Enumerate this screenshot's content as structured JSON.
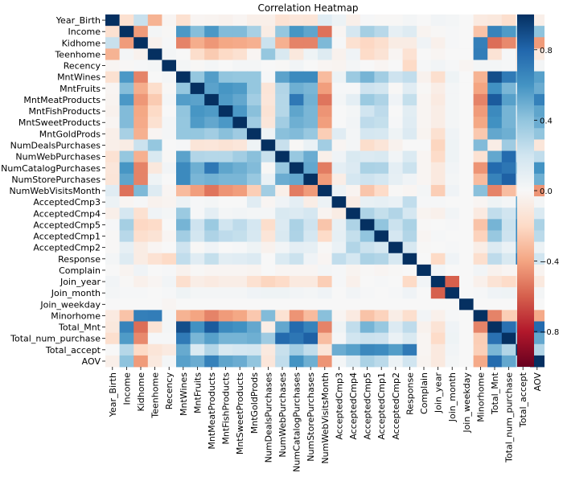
{
  "chart_data": {
    "type": "heatmap",
    "title": "Correlation Heatmap",
    "xlabel": "",
    "ylabel": "",
    "value_range": [
      -1,
      1
    ],
    "colormap": "RdBu",
    "colorbar_ticks": [
      0.8,
      0.4,
      0.0,
      -0.4,
      -0.8
    ],
    "colorbar_tick_labels": [
      "0.8",
      "0.4",
      "0.0",
      "−0.4",
      "−0.8"
    ],
    "labels": [
      "Year_Birth",
      "Income",
      "Kidhome",
      "Teenhome",
      "Recency",
      "MntWines",
      "MntFruits",
      "MntMeatProducts",
      "MntFishProducts",
      "MntSweetProducts",
      "MntGoldProds",
      "NumDealsPurchases",
      "NumWebPurchases",
      "NumCatalogPurchases",
      "NumStorePurchases",
      "NumWebVisitsMonth",
      "AcceptedCmp3",
      "AcceptedCmp4",
      "AcceptedCmp5",
      "AcceptedCmp1",
      "AcceptedCmp2",
      "Response",
      "Complain",
      "Join_year",
      "Join_month",
      "Join_weekday",
      "Minorhome",
      "Total_Mnt",
      "Total_num_purchase",
      "Total_accept",
      "AOV"
    ],
    "matrix": [
      [
        1,
        -0.16,
        0.23,
        -0.35,
        -0.02,
        -0.16,
        -0.02,
        -0.03,
        -0.04,
        -0.02,
        -0.06,
        -0.06,
        -0.15,
        -0.12,
        -0.13,
        0.12,
        0.06,
        -0.06,
        0.01,
        -0.01,
        -0.01,
        0.02,
        0,
        0.03,
        0.02,
        0,
        -0.09,
        -0.11,
        -0.17,
        0,
        -0.06
      ],
      [
        -0.16,
        1,
        -0.43,
        0.02,
        -0.01,
        0.58,
        0.43,
        0.58,
        0.44,
        0.44,
        0.33,
        -0.08,
        0.39,
        0.59,
        0.53,
        -0.55,
        -0.02,
        0.18,
        0.34,
        0.28,
        0.09,
        0.13,
        -0.03,
        -0.01,
        0.01,
        0,
        -0.29,
        0.67,
        0.57,
        0.29,
        0.41
      ],
      [
        0.23,
        -0.43,
        1,
        -0.04,
        0.01,
        -0.5,
        -0.37,
        -0.44,
        -0.39,
        -0.38,
        -0.36,
        0.22,
        -0.36,
        -0.5,
        -0.5,
        0.45,
        0.01,
        -0.16,
        -0.21,
        -0.17,
        -0.08,
        -0.08,
        0.04,
        -0.05,
        0.01,
        0,
        0.69,
        -0.56,
        -0.48,
        -0.2,
        -0.43
      ],
      [
        -0.35,
        0.02,
        -0.04,
        1,
        0.02,
        0,
        -0.18,
        -0.26,
        -0.2,
        -0.16,
        -0.02,
        0.39,
        0.16,
        -0.11,
        0.05,
        0.13,
        -0.04,
        0.04,
        -0.19,
        -0.14,
        -0.02,
        -0.15,
        0,
        -0.02,
        0,
        0,
        0.7,
        -0.14,
        0.01,
        -0.13,
        -0.1
      ],
      [
        -0.02,
        -0.01,
        0.01,
        0.02,
        1,
        0.02,
        -0.01,
        0.02,
        0,
        0.02,
        0.02,
        0,
        -0.01,
        0.03,
        0,
        -0.02,
        -0.03,
        0.02,
        0,
        -0.02,
        0,
        -0.2,
        0.01,
        0.03,
        0.01,
        -0.02,
        0.02,
        0.02,
        0.01,
        -0.09,
        0.02
      ],
      [
        -0.16,
        0.58,
        -0.5,
        0,
        0.02,
        1,
        0.39,
        0.56,
        0.4,
        0.39,
        0.39,
        0.01,
        0.54,
        0.64,
        0.64,
        -0.32,
        0.06,
        0.37,
        0.47,
        0.35,
        0.21,
        0.25,
        -0.04,
        -0.17,
        0.05,
        0,
        -0.35,
        0.89,
        0.71,
        0.51,
        0.55
      ],
      [
        -0.02,
        0.43,
        -0.37,
        -0.18,
        -0.01,
        0.39,
        1,
        0.54,
        0.59,
        0.57,
        0.39,
        -0.13,
        0.3,
        0.49,
        0.46,
        -0.42,
        0.01,
        0.01,
        0.21,
        0.19,
        -0.01,
        0.12,
        -0.01,
        -0.07,
        0.02,
        0,
        -0.4,
        0.61,
        0.46,
        0.15,
        0.5
      ],
      [
        -0.03,
        0.58,
        -0.44,
        -0.26,
        0.02,
        0.56,
        0.54,
        1,
        0.57,
        0.52,
        0.35,
        -0.12,
        0.29,
        0.72,
        0.48,
        -0.54,
        0.02,
        0.1,
        0.37,
        0.31,
        0.04,
        0.24,
        -0.02,
        -0.09,
        0.02,
        0,
        -0.5,
        0.84,
        0.55,
        0.3,
        0.68
      ],
      [
        -0.04,
        0.44,
        -0.39,
        -0.2,
        0,
        0.4,
        0.59,
        0.57,
        1,
        0.58,
        0.42,
        -0.14,
        0.29,
        0.53,
        0.46,
        -0.45,
        0,
        0.02,
        0.2,
        0.26,
        0,
        0.11,
        -0.02,
        -0.07,
        0.02,
        0,
        -0.43,
        0.64,
        0.47,
        0.16,
        0.53
      ],
      [
        -0.02,
        0.44,
        -0.38,
        -0.16,
        0.02,
        0.39,
        0.57,
        0.52,
        0.58,
        1,
        0.36,
        -0.12,
        0.35,
        0.49,
        0.46,
        -0.42,
        0,
        0.03,
        0.26,
        0.24,
        0.01,
        0.12,
        -0.02,
        -0.07,
        0.02,
        0,
        -0.39,
        0.61,
        0.47,
        0.18,
        0.5
      ],
      [
        -0.06,
        0.33,
        -0.36,
        -0.02,
        0.02,
        0.39,
        0.39,
        0.35,
        0.42,
        0.36,
        1,
        0.05,
        0.42,
        0.44,
        0.38,
        -0.25,
        0.12,
        0.02,
        0.18,
        0.17,
        0.05,
        0.14,
        -0.03,
        -0.16,
        0.04,
        0,
        -0.27,
        0.52,
        0.49,
        0.19,
        0.4
      ],
      [
        -0.06,
        -0.08,
        0.22,
        0.39,
        0,
        0.01,
        -0.13,
        -0.12,
        -0.14,
        -0.12,
        0.05,
        1,
        0.23,
        -0.01,
        0.07,
        0.35,
        -0.02,
        0.02,
        -0.18,
        -0.13,
        -0.04,
        0,
        0,
        -0.22,
        0.05,
        0,
        0.44,
        -0.07,
        0.36,
        -0.1,
        -0.12
      ],
      [
        -0.15,
        0.39,
        -0.36,
        0.16,
        -0.01,
        0.54,
        0.3,
        0.29,
        0.29,
        0.35,
        0.42,
        0.23,
        1,
        0.38,
        0.5,
        -0.06,
        0.04,
        0.16,
        0.14,
        0.16,
        0.03,
        0.15,
        -0.02,
        -0.19,
        0.05,
        0,
        -0.15,
        0.52,
        0.78,
        0.23,
        0.25
      ],
      [
        -0.12,
        0.59,
        -0.5,
        -0.11,
        0.03,
        0.64,
        0.49,
        0.72,
        0.53,
        0.49,
        0.44,
        -0.01,
        0.38,
        1,
        0.52,
        -0.52,
        0.1,
        0.14,
        0.32,
        0.31,
        0.1,
        0.22,
        -0.02,
        -0.1,
        0.03,
        0,
        -0.45,
        0.78,
        0.73,
        0.35,
        0.6
      ],
      [
        -0.13,
        0.53,
        -0.5,
        0.05,
        0,
        0.64,
        0.46,
        0.48,
        0.46,
        0.46,
        0.38,
        0.07,
        0.5,
        0.52,
        1,
        -0.43,
        -0.07,
        0.18,
        0.21,
        0.18,
        0.09,
        0.04,
        -0.02,
        -0.1,
        0.02,
        0,
        -0.32,
        0.67,
        0.82,
        0.25,
        0.49
      ],
      [
        0.12,
        -0.55,
        0.45,
        0.13,
        -0.02,
        -0.32,
        -0.42,
        -0.54,
        -0.45,
        -0.42,
        -0.25,
        0.35,
        -0.06,
        -0.52,
        -0.43,
        1,
        0.06,
        -0.03,
        -0.28,
        -0.19,
        -0.01,
        -0.02,
        0.02,
        -0.25,
        0.04,
        0,
        0.42,
        -0.5,
        -0.31,
        -0.13,
        -0.45
      ],
      [
        0.06,
        -0.02,
        0.01,
        -0.04,
        -0.03,
        0.06,
        0.01,
        0.02,
        0,
        0,
        0.12,
        -0.02,
        0.04,
        0.1,
        -0.07,
        0.06,
        1,
        -0.08,
        0.08,
        0.09,
        0.07,
        0.25,
        0.01,
        0.01,
        0,
        0,
        -0.02,
        0.05,
        0.02,
        0.5,
        0.02
      ],
      [
        -0.06,
        0.18,
        -0.16,
        0.04,
        0.02,
        0.37,
        0.01,
        0.1,
        0.02,
        0.03,
        0.02,
        0.02,
        0.16,
        0.14,
        0.18,
        -0.03,
        -0.08,
        1,
        0.31,
        0.24,
        0.3,
        0.18,
        -0.03,
        -0.05,
        0.03,
        0,
        -0.09,
        0.25,
        0.2,
        0.55,
        0.15
      ],
      [
        0.01,
        0.34,
        -0.21,
        -0.19,
        0,
        0.47,
        0.21,
        0.37,
        0.2,
        0.26,
        0.18,
        -0.18,
        0.14,
        0.32,
        0.21,
        -0.28,
        0.08,
        0.31,
        1,
        0.4,
        0.22,
        0.32,
        -0.01,
        0,
        0.01,
        0,
        -0.29,
        0.47,
        0.22,
        0.65,
        0.32
      ],
      [
        -0.01,
        0.28,
        -0.17,
        -0.14,
        -0.02,
        0.35,
        0.19,
        0.31,
        0.26,
        0.24,
        0.17,
        -0.13,
        0.16,
        0.31,
        0.18,
        -0.19,
        0.09,
        0.24,
        0.4,
        1,
        0.18,
        0.3,
        -0.02,
        0.01,
        0,
        0,
        -0.23,
        0.38,
        0.21,
        0.63,
        0.27
      ],
      [
        -0.01,
        0.09,
        -0.08,
        -0.02,
        0,
        0.21,
        -0.01,
        0.04,
        0,
        0.01,
        0.05,
        -0.04,
        0.03,
        0.1,
        0.09,
        -0.01,
        0.07,
        0.3,
        0.22,
        0.18,
        1,
        0.17,
        -0.01,
        0,
        0.01,
        0,
        -0.07,
        0.14,
        0.07,
        0.56,
        0.06
      ],
      [
        0.02,
        0.13,
        -0.08,
        -0.15,
        -0.2,
        0.25,
        0.12,
        0.24,
        0.11,
        0.12,
        0.14,
        0,
        0.15,
        0.22,
        0.04,
        -0.02,
        0.25,
        0.18,
        0.32,
        0.3,
        0.17,
        1,
        0,
        -0.2,
        0.04,
        0,
        -0.17,
        0.26,
        0.16,
        0.71,
        0.2
      ],
      [
        0,
        -0.03,
        0.04,
        0,
        0.01,
        -0.04,
        -0.01,
        -0.02,
        -0.02,
        -0.02,
        -0.03,
        0,
        -0.02,
        -0.02,
        -0.02,
        0.02,
        0.01,
        -0.03,
        -0.01,
        -0.02,
        -0.01,
        0,
        1,
        0.03,
        0,
        0,
        0.03,
        -0.04,
        -0.02,
        -0.02,
        -0.03
      ],
      [
        0.03,
        -0.01,
        -0.05,
        -0.02,
        0.03,
        -0.17,
        -0.07,
        -0.09,
        -0.07,
        -0.07,
        -0.16,
        -0.22,
        -0.19,
        -0.1,
        -0.1,
        -0.25,
        0.01,
        -0.05,
        0,
        0.01,
        0,
        -0.2,
        0.03,
        1,
        -0.6,
        0,
        -0.05,
        -0.14,
        -0.19,
        -0.1,
        -0.1
      ],
      [
        0.02,
        0.01,
        0.01,
        0,
        0.01,
        0.05,
        0.02,
        0.02,
        0.02,
        0.02,
        0.04,
        0.05,
        0.05,
        0.03,
        0.02,
        0.04,
        0,
        0.03,
        0.01,
        0,
        0.01,
        0.04,
        0,
        -0.6,
        1,
        0,
        0.01,
        0.04,
        0.05,
        0.03,
        0.02
      ],
      [
        0,
        0,
        0,
        0,
        -0.02,
        0,
        0,
        0,
        0,
        0,
        0,
        0,
        0,
        0,
        0,
        0,
        0,
        0,
        0,
        0,
        0,
        0,
        0,
        0,
        0,
        1,
        0,
        0,
        0,
        0,
        0
      ],
      [
        -0.09,
        -0.29,
        0.69,
        0.7,
        0.02,
        -0.35,
        -0.4,
        -0.5,
        -0.43,
        -0.39,
        -0.27,
        0.44,
        -0.15,
        -0.45,
        -0.32,
        0.42,
        -0.02,
        -0.09,
        -0.29,
        -0.23,
        -0.07,
        -0.17,
        0.03,
        -0.05,
        0.01,
        0,
        1,
        -0.5,
        -0.25,
        -0.24,
        -0.38
      ],
      [
        -0.11,
        0.67,
        -0.56,
        -0.14,
        0.02,
        0.89,
        0.61,
        0.84,
        0.64,
        0.61,
        0.52,
        -0.07,
        0.52,
        0.78,
        0.67,
        -0.5,
        0.05,
        0.25,
        0.47,
        0.38,
        0.14,
        0.26,
        -0.04,
        -0.14,
        0.04,
        0,
        -0.5,
        1,
        0.75,
        0.46,
        0.78
      ],
      [
        -0.17,
        0.57,
        -0.48,
        0.01,
        0.01,
        0.71,
        0.46,
        0.55,
        0.47,
        0.47,
        0.49,
        0.36,
        0.78,
        0.73,
        0.82,
        -0.31,
        0.02,
        0.2,
        0.22,
        0.21,
        0.07,
        0.16,
        -0.02,
        -0.19,
        0.05,
        0,
        -0.25,
        0.75,
        1,
        0.3,
        0.52
      ],
      [
        0,
        0.29,
        -0.2,
        -0.13,
        -0.09,
        0.51,
        0.15,
        0.3,
        0.16,
        0.18,
        0.19,
        -0.1,
        0.23,
        0.35,
        0.25,
        -0.13,
        0.5,
        0.55,
        0.65,
        0.63,
        0.56,
        0.71,
        -0.02,
        -0.1,
        0.03,
        0,
        -0.24,
        0.46,
        0.3,
        1,
        0.3
      ],
      [
        -0.06,
        0.41,
        -0.43,
        -0.1,
        0.02,
        0.55,
        0.5,
        0.68,
        0.53,
        0.5,
        0.4,
        -0.12,
        0.25,
        0.6,
        0.49,
        -0.45,
        0.02,
        0.15,
        0.32,
        0.27,
        0.06,
        0.2,
        -0.03,
        -0.1,
        0.02,
        0,
        -0.38,
        0.78,
        0.52,
        0.3,
        1
      ]
    ]
  }
}
